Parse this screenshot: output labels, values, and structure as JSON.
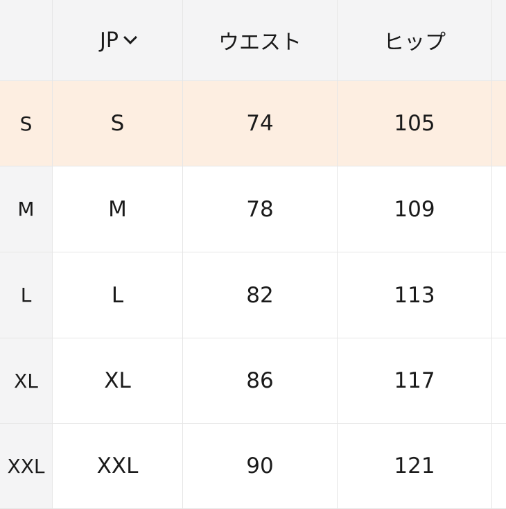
{
  "table": {
    "headers": [
      "",
      "JP",
      "ウエスト",
      "ヒップ",
      ""
    ],
    "highlight_color": "#fdeee1",
    "rows": [
      {
        "size": "S",
        "jp": "S",
        "waist": "74",
        "hip": "105",
        "highlighted": true
      },
      {
        "size": "M",
        "jp": "M",
        "waist": "78",
        "hip": "109",
        "highlighted": false
      },
      {
        "size": "L",
        "jp": "L",
        "waist": "82",
        "hip": "113",
        "highlighted": false
      },
      {
        "size": "XL",
        "jp": "XL",
        "waist": "86",
        "hip": "117",
        "highlighted": false
      },
      {
        "size": "XXL",
        "jp": "XXL",
        "waist": "90",
        "hip": "121",
        "highlighted": false
      }
    ]
  }
}
